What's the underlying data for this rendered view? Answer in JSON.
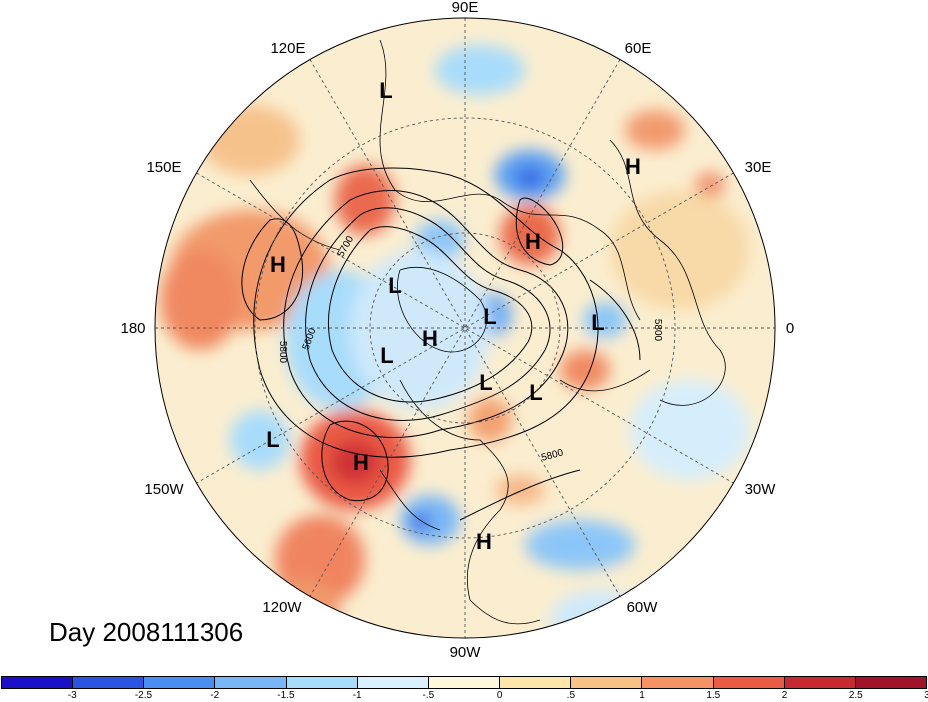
{
  "map": {
    "title": "Day 2008111306",
    "projection": "polar-stereographic-north",
    "longitude_labels": [
      "90E",
      "60E",
      "30E",
      "0",
      "30W",
      "60W",
      "90W",
      "120W",
      "150W",
      "180",
      "150E",
      "120E"
    ],
    "pressure_centers": [
      {
        "type": "L",
        "id": "siberia-north"
      },
      {
        "type": "H",
        "id": "russia-northwest"
      },
      {
        "type": "H",
        "id": "barents"
      },
      {
        "type": "H",
        "id": "bering"
      },
      {
        "type": "L",
        "id": "east-siberian-sea"
      },
      {
        "type": "L",
        "id": "pole-east"
      },
      {
        "type": "H",
        "id": "pole"
      },
      {
        "type": "L",
        "id": "arctic-canada"
      },
      {
        "type": "L",
        "id": "scandinavia-west"
      },
      {
        "type": "L",
        "id": "hudson"
      },
      {
        "type": "L",
        "id": "greenland-south"
      },
      {
        "type": "L",
        "id": "north-pacific"
      },
      {
        "type": "H",
        "id": "gulf-of-alaska"
      },
      {
        "type": "H",
        "id": "caribbean"
      }
    ],
    "contour_labels": [
      "5700",
      "5600",
      "5800",
      "5800",
      "5800"
    ]
  },
  "colorbar": {
    "colors": [
      "#1a10c8",
      "#2a55e0",
      "#4a8ef2",
      "#78b6f6",
      "#a8dcfb",
      "#daf0fc",
      "#fdf8dc",
      "#fce6aa",
      "#f8c286",
      "#f49464",
      "#ea5a44",
      "#c62a30",
      "#a2122a"
    ],
    "labels": [
      "-3",
      "-2.5",
      "-2",
      "-1.5",
      "-1",
      "-.5",
      "0",
      ".5",
      "1",
      "1.5",
      "2",
      "2.5",
      "3"
    ]
  }
}
